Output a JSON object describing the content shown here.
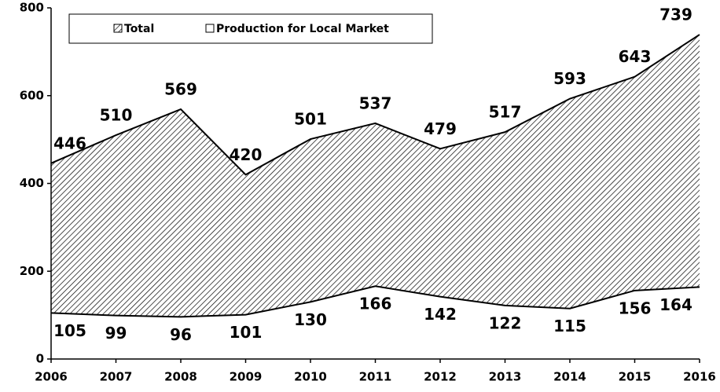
{
  "chart_data": {
    "type": "area",
    "x": [
      2006,
      2007,
      2008,
      2009,
      2010,
      2011,
      2012,
      2013,
      2014,
      2015,
      2016
    ],
    "series": [
      {
        "name": "Total",
        "color": "#000000",
        "values": [
          446,
          510,
          569,
          420,
          501,
          537,
          479,
          517,
          593,
          643,
          739
        ]
      },
      {
        "name": "Production for Local Market",
        "color": "#ffffff",
        "values": [
          105,
          99,
          96,
          101,
          130,
          166,
          142,
          122,
          115,
          156,
          164
        ]
      }
    ],
    "xlim": [
      2006,
      2016
    ],
    "xticks": [
      2006,
      2007,
      2008,
      2009,
      2010,
      2011,
      2012,
      2013,
      2014,
      2015,
      2016
    ],
    "ylim": [
      0,
      800
    ],
    "yticks": [
      0,
      200,
      400,
      600,
      800
    ],
    "legend": "top"
  }
}
